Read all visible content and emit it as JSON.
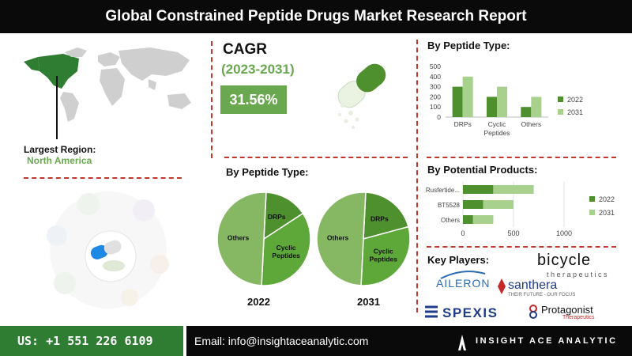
{
  "header": {
    "title": "Global Constrained Peptide Drugs Market Research Report"
  },
  "cagr": {
    "label": "CAGR",
    "period": "(2023-2031)",
    "value": "31.56%"
  },
  "region": {
    "label": "Largest Region:",
    "value": "North America"
  },
  "pie_section": {
    "title": "By Peptide Type:"
  },
  "key_players": {
    "title": "Key Players:",
    "players": [
      "bicycle",
      "therapeutics",
      "AILERON",
      "santhera",
      "THEIR FUTURE - OUR FOCUS",
      "SPEXIS",
      "Protagonist",
      "Therapeutics"
    ]
  },
  "footer": {
    "phone": "US: +1 551 226 6109",
    "email": "Email: info@insightaceanalytic.com",
    "brand": "INSIGHT ACE ANALYTIC"
  },
  "colors": {
    "series_2022": "#4e8f2e",
    "series_2031": "#a9d18e",
    "accent_green": "#6aa84f",
    "divider": "#c0392b",
    "footer_green": "#2e7d32"
  },
  "chart_data": [
    {
      "id": "bar-peptide-type",
      "type": "bar",
      "title": "By Peptide Type:",
      "categories": [
        "DRPs",
        "Cyclic Peptides",
        "Others"
      ],
      "series": [
        {
          "name": "2022",
          "values": [
            300,
            200,
            100
          ]
        },
        {
          "name": "2031",
          "values": [
            400,
            300,
            200
          ]
        }
      ],
      "ylim": [
        0,
        500
      ],
      "yticks": [
        0,
        100,
        200,
        300,
        400,
        500
      ],
      "legend": "right",
      "grid": false
    },
    {
      "id": "bar-potential-products",
      "type": "stacked-horizontal-bar",
      "title": "By Potential Products:",
      "categories": [
        "Rusfertide...",
        "BT5528",
        "Others"
      ],
      "series": [
        {
          "name": "2022",
          "values": [
            300,
            200,
            100
          ]
        },
        {
          "name": "2031",
          "values": [
            400,
            300,
            200
          ]
        }
      ],
      "xlim": [
        0,
        1000
      ],
      "xticks": [
        0,
        500,
        1000
      ],
      "legend": "right",
      "grid": true
    },
    {
      "id": "pie-2022",
      "type": "pie",
      "label": "2022",
      "slices": [
        {
          "name": "DRPs",
          "value": 15
        },
        {
          "name": "Cyclic Peptides",
          "value": 35
        },
        {
          "name": "Others",
          "value": 50
        }
      ]
    },
    {
      "id": "pie-2031",
      "type": "pie",
      "label": "2031",
      "slices": [
        {
          "name": "DRPs",
          "value": 20
        },
        {
          "name": "Cyclic Peptides",
          "value": 30
        },
        {
          "name": "Others",
          "value": 50
        }
      ]
    }
  ]
}
